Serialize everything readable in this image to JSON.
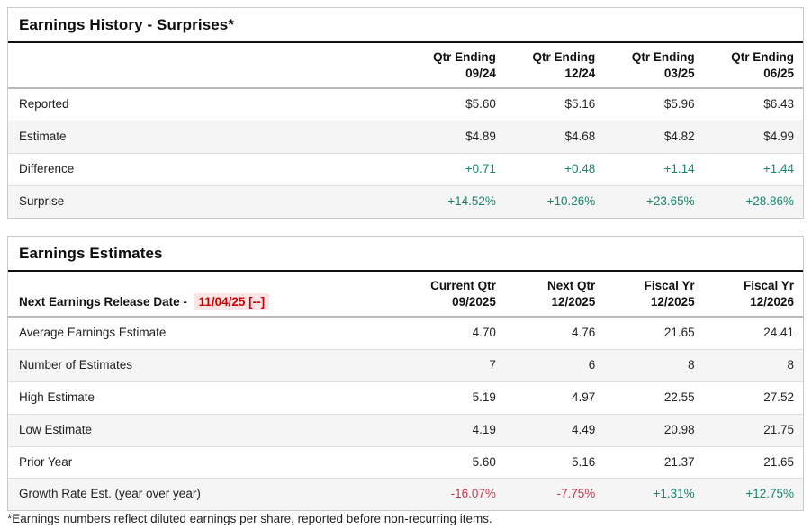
{
  "colors": {
    "positive_green": "#17866b",
    "negative_red": "#c2394d",
    "release_date_red": "#cc0000",
    "release_date_bg": "#fce5e5",
    "stripe_row_bg": "#f5f5f5",
    "border_gray": "#c9c9c9"
  },
  "history": {
    "title": "Earnings History - Surprises*",
    "columns": [
      "Qtr Ending\n09/24",
      "Qtr Ending\n12/24",
      "Qtr Ending\n03/25",
      "Qtr Ending\n06/25"
    ],
    "rows": [
      {
        "label": "Reported",
        "values": [
          "$5.60",
          "$5.16",
          "$5.96",
          "$6.43"
        ]
      },
      {
        "label": "Estimate",
        "values": [
          "$4.89",
          "$4.68",
          "$4.82",
          "$4.99"
        ]
      },
      {
        "label": "Difference",
        "values": [
          "+0.71",
          "+0.48",
          "+1.14",
          "+1.44"
        ]
      },
      {
        "label": "Surprise",
        "values": [
          "+14.52%",
          "+10.26%",
          "+23.65%",
          "+28.86%"
        ]
      }
    ]
  },
  "estimates": {
    "title": "Earnings Estimates",
    "release_label": "Next Earnings Release Date - ",
    "release_date": "11/04/25 [--]",
    "columns": [
      "Current Qtr\n09/2025",
      "Next Qtr\n12/2025",
      "Fiscal Yr\n12/2025",
      "Fiscal Yr\n12/2026"
    ],
    "rows": [
      {
        "label": "Average Earnings Estimate",
        "values": [
          "4.70",
          "4.76",
          "21.65",
          "24.41"
        ]
      },
      {
        "label": "Number of Estimates",
        "values": [
          "7",
          "6",
          "8",
          "8"
        ]
      },
      {
        "label": "High Estimate",
        "values": [
          "5.19",
          "4.97",
          "22.55",
          "27.52"
        ]
      },
      {
        "label": "Low Estimate",
        "values": [
          "4.19",
          "4.49",
          "20.98",
          "21.75"
        ]
      },
      {
        "label": "Prior Year",
        "values": [
          "5.60",
          "5.16",
          "21.37",
          "21.65"
        ]
      },
      {
        "label": "Growth Rate Est. (year over year)",
        "values": [
          "-16.07%",
          "-7.75%",
          "+1.31%",
          "+12.75%"
        ]
      }
    ]
  },
  "footnote": "*Earnings numbers reflect diluted earnings per share, reported before non-recurring items."
}
